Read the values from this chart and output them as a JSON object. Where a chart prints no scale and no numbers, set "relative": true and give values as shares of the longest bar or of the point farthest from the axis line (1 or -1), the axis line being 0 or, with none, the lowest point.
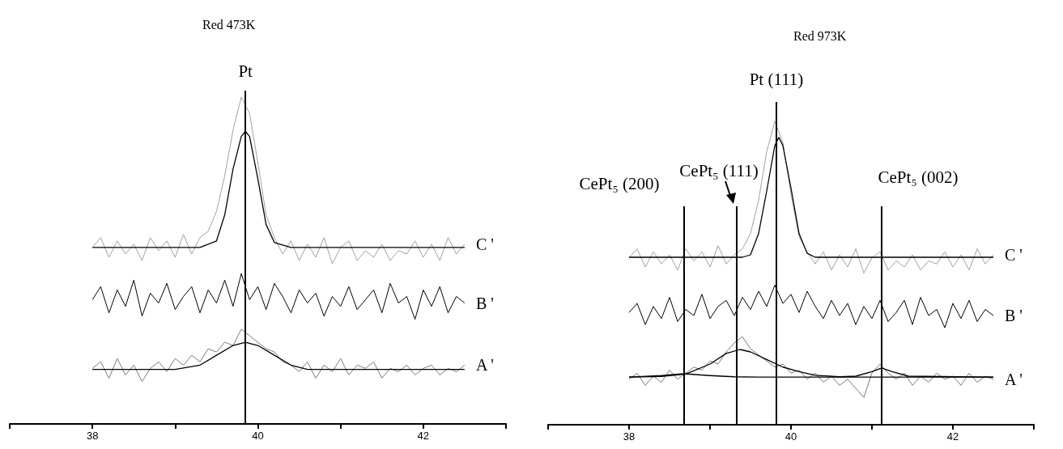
{
  "chart_data": [
    {
      "type": "line",
      "relative": true,
      "title": "Red 473K",
      "xlim": [
        37,
        43
      ],
      "xticks": [
        {
          "value": 37,
          "label": null
        },
        38,
        {
          "value": 39,
          "label": null
        },
        40,
        {
          "value": 41,
          "label": null
        },
        42,
        {
          "value": 43,
          "label": null
        }
      ],
      "x": [
        38.0,
        38.1,
        38.2,
        38.3,
        38.4,
        38.5,
        38.6,
        38.7,
        38.8,
        38.9,
        39.0,
        39.1,
        39.2,
        39.3,
        39.4,
        39.5,
        39.6,
        39.7,
        39.8,
        39.9,
        40.0,
        40.1,
        40.2,
        40.3,
        40.4,
        40.5,
        40.6,
        40.7,
        40.8,
        40.9,
        41.0,
        41.1,
        41.2,
        41.3,
        41.4,
        41.5,
        41.6,
        41.7,
        41.8,
        41.9,
        42.0,
        42.1,
        42.2,
        42.3,
        42.4,
        42.5
      ],
      "ref_lines": [
        {
          "axis": "x",
          "value": 39.85,
          "label": "Pt"
        }
      ],
      "series": [
        {
          "name": "C '",
          "color": "#a0a0a0",
          "values": [
            0.54,
            0.57,
            0.51,
            0.56,
            0.52,
            0.55,
            0.5,
            0.57,
            0.53,
            0.56,
            0.51,
            0.58,
            0.52,
            0.57,
            0.59,
            0.65,
            0.76,
            0.9,
            1.0,
            0.95,
            0.8,
            0.64,
            0.57,
            0.52,
            0.56,
            0.5,
            0.55,
            0.51,
            0.57,
            0.49,
            0.54,
            0.56,
            0.5,
            0.53,
            0.51,
            0.55,
            0.5,
            0.53,
            0.52,
            0.56,
            0.51,
            0.55,
            0.5,
            0.57,
            0.52,
            0.55
          ]
        },
        {
          "color": "#000000",
          "x": [
            38,
            39.3,
            39.5,
            39.6,
            39.7,
            39.8,
            39.85,
            39.9,
            40.0,
            40.1,
            40.2,
            40.4,
            42.5
          ],
          "values": [
            0.54,
            0.54,
            0.56,
            0.64,
            0.78,
            0.88,
            0.895,
            0.88,
            0.75,
            0.61,
            0.555,
            0.54,
            0.54
          ]
        },
        {
          "name": "B '",
          "color": "#000000",
          "values": [
            0.38,
            0.42,
            0.34,
            0.41,
            0.36,
            0.44,
            0.33,
            0.4,
            0.37,
            0.43,
            0.35,
            0.39,
            0.42,
            0.34,
            0.41,
            0.37,
            0.44,
            0.36,
            0.46,
            0.38,
            0.42,
            0.35,
            0.43,
            0.39,
            0.34,
            0.41,
            0.37,
            0.4,
            0.33,
            0.39,
            0.36,
            0.42,
            0.35,
            0.38,
            0.41,
            0.34,
            0.43,
            0.37,
            0.39,
            0.32,
            0.41,
            0.36,
            0.42,
            0.34,
            0.39,
            0.37
          ]
        },
        {
          "name": "A '",
          "color": "#7a7a7a",
          "values": [
            0.17,
            0.19,
            0.14,
            0.2,
            0.15,
            0.18,
            0.13,
            0.17,
            0.19,
            0.16,
            0.2,
            0.18,
            0.21,
            0.19,
            0.23,
            0.22,
            0.25,
            0.24,
            0.29,
            0.27,
            0.25,
            0.23,
            0.22,
            0.19,
            0.18,
            0.16,
            0.19,
            0.14,
            0.18,
            0.16,
            0.2,
            0.15,
            0.18,
            0.17,
            0.19,
            0.14,
            0.17,
            0.16,
            0.18,
            0.15,
            0.17,
            0.18,
            0.15,
            0.17,
            0.16,
            0.18
          ]
        },
        {
          "color": "#000000",
          "x": [
            38,
            39.0,
            39.3,
            39.5,
            39.7,
            39.85,
            40.0,
            40.2,
            40.4,
            40.6,
            42.5
          ],
          "values": [
            0.167,
            0.167,
            0.18,
            0.21,
            0.24,
            0.25,
            0.24,
            0.21,
            0.18,
            0.167,
            0.167
          ]
        }
      ]
    },
    {
      "type": "line",
      "relative": true,
      "title": "Red 973K",
      "xlim": [
        37,
        43
      ],
      "xticks": [
        {
          "value": 37,
          "label": null
        },
        38,
        {
          "value": 39,
          "label": null
        },
        40,
        {
          "value": 41,
          "label": null
        },
        42,
        {
          "value": 43,
          "label": null
        }
      ],
      "x": [
        38.0,
        38.1,
        38.2,
        38.3,
        38.4,
        38.5,
        38.6,
        38.7,
        38.8,
        38.9,
        39.0,
        39.1,
        39.2,
        39.3,
        39.4,
        39.5,
        39.6,
        39.7,
        39.8,
        39.9,
        40.0,
        40.1,
        40.2,
        40.3,
        40.4,
        40.5,
        40.6,
        40.7,
        40.8,
        40.9,
        41.0,
        41.1,
        41.2,
        41.3,
        41.4,
        41.5,
        41.6,
        41.7,
        41.8,
        41.9,
        42.0,
        42.1,
        42.2,
        42.3,
        42.4,
        42.5
      ],
      "ref_lines": [
        {
          "axis": "x",
          "value": 38.68,
          "label": "CePt₅ (200)"
        },
        {
          "axis": "x",
          "value": 39.33,
          "label": "CePt₅ (111)"
        },
        {
          "axis": "x",
          "value": 39.82,
          "label": "Pt (111)"
        },
        {
          "axis": "x",
          "value": 41.12,
          "label": "CePt₅ (002)"
        }
      ],
      "series": [
        {
          "name": "C '",
          "color": "#a0a0a0",
          "values": [
            0.55,
            0.58,
            0.52,
            0.57,
            0.53,
            0.56,
            0.51,
            0.58,
            0.54,
            0.57,
            0.52,
            0.59,
            0.53,
            0.56,
            0.58,
            0.63,
            0.74,
            0.9,
            1.0,
            0.93,
            0.76,
            0.62,
            0.57,
            0.53,
            0.57,
            0.51,
            0.56,
            0.52,
            0.58,
            0.5,
            0.55,
            0.57,
            0.51,
            0.54,
            0.52,
            0.56,
            0.51,
            0.54,
            0.53,
            0.57,
            0.52,
            0.56,
            0.51,
            0.58,
            0.53,
            0.56
          ]
        },
        {
          "color": "#000000",
          "x": [
            38,
            39.4,
            39.5,
            39.6,
            39.7,
            39.8,
            39.85,
            39.9,
            40.0,
            40.1,
            40.2,
            40.3,
            42.5
          ],
          "values": [
            0.552,
            0.552,
            0.56,
            0.63,
            0.77,
            0.92,
            0.947,
            0.92,
            0.78,
            0.63,
            0.565,
            0.552,
            0.552
          ]
        },
        {
          "name": "B '",
          "color": "#000000",
          "values": [
            0.37,
            0.4,
            0.33,
            0.39,
            0.35,
            0.42,
            0.34,
            0.38,
            0.36,
            0.43,
            0.35,
            0.39,
            0.41,
            0.36,
            0.42,
            0.38,
            0.44,
            0.39,
            0.46,
            0.4,
            0.43,
            0.37,
            0.44,
            0.39,
            0.35,
            0.41,
            0.36,
            0.4,
            0.33,
            0.39,
            0.35,
            0.41,
            0.34,
            0.37,
            0.41,
            0.33,
            0.42,
            0.36,
            0.38,
            0.32,
            0.4,
            0.35,
            0.41,
            0.34,
            0.38,
            0.36
          ]
        },
        {
          "name": "A '",
          "color": "#7a7a7a",
          "values": [
            0.15,
            0.17,
            0.13,
            0.16,
            0.14,
            0.18,
            0.15,
            0.17,
            0.19,
            0.18,
            0.21,
            0.2,
            0.24,
            0.27,
            0.29,
            0.25,
            0.23,
            0.21,
            0.19,
            0.2,
            0.17,
            0.18,
            0.15,
            0.17,
            0.14,
            0.16,
            0.13,
            0.15,
            0.12,
            0.09,
            0.17,
            0.2,
            0.17,
            0.15,
            0.17,
            0.13,
            0.16,
            0.14,
            0.17,
            0.15,
            0.16,
            0.13,
            0.17,
            0.14,
            0.16,
            0.15
          ]
        },
        {
          "color": "#000000",
          "x": [
            38,
            38.4,
            38.7,
            39.0,
            39.2,
            39.37,
            39.5,
            39.7,
            39.9,
            40.1,
            40.3,
            40.6,
            40.8,
            41.0,
            41.12,
            41.25,
            41.45,
            42.5
          ],
          "values": [
            0.157,
            0.159,
            0.167,
            0.2,
            0.235,
            0.248,
            0.24,
            0.215,
            0.19,
            0.175,
            0.163,
            0.158,
            0.16,
            0.175,
            0.187,
            0.175,
            0.16,
            0.157
          ]
        },
        {
          "color": "#000000",
          "x": [
            38,
            38.4,
            38.68,
            39.0,
            39.3,
            39.6,
            42.5
          ],
          "values": [
            0.157,
            0.162,
            0.168,
            0.162,
            0.158,
            0.157,
            0.157
          ]
        }
      ]
    }
  ]
}
